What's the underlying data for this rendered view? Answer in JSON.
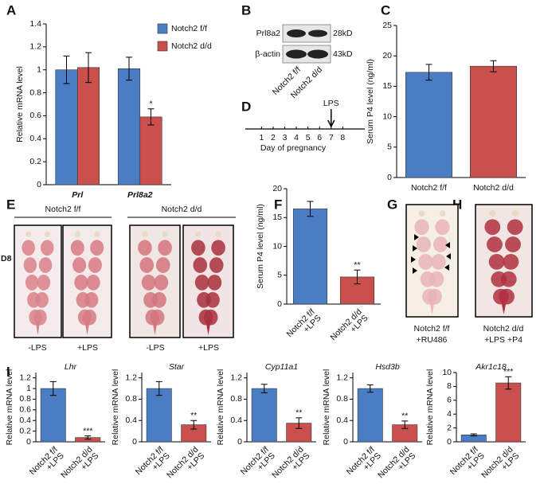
{
  "panel_labels": [
    "A",
    "B",
    "C",
    "D",
    "E",
    "F",
    "G",
    "H",
    "I"
  ],
  "chart_data": [
    {
      "type": "bar",
      "ylabel": "Relative mRNA level",
      "categories": [
        "Prl",
        "Prl8a2"
      ],
      "series": [
        {
          "name": "Notch2 f/f",
          "color": "#4a7dc4",
          "values": [
            1.0,
            1.01
          ],
          "errors": [
            0.12,
            0.1
          ]
        },
        {
          "name": "Notch2 d/d",
          "color": "#c9504c",
          "values": [
            1.02,
            0.59
          ],
          "errors": [
            0.13,
            0.07
          ],
          "significance": [
            null,
            "*"
          ]
        }
      ],
      "ylim": [
        0,
        1.4
      ],
      "yticks": [
        0,
        0.2,
        0.4,
        0.6,
        0.8,
        1,
        1.2,
        1.4
      ],
      "legend": "upper right"
    },
    {
      "type": "bar",
      "ylabel": "Serum P4 level (ng/ml)",
      "categories": [
        "Notch2 f/f",
        "Notch2 d/d"
      ],
      "values": [
        17.3,
        18.3
      ],
      "errors": [
        1.3,
        0.9
      ],
      "colors": [
        "#4a7dc4",
        "#c9504c"
      ],
      "ylim": [
        0,
        25
      ],
      "yticks": [
        0,
        5,
        10,
        15,
        20,
        25
      ]
    },
    {
      "type": "timeline",
      "xlabel": "Day of pregnancy",
      "xlim": [
        -0.4,
        9.9
      ],
      "xticks": [
        1,
        2,
        3,
        4,
        5,
        6,
        7,
        8
      ],
      "annotations": [
        {
          "text": "LPS",
          "x": 7
        }
      ]
    },
    {
      "type": "bar",
      "ylabel": "Serum P4 level (ng/ml)",
      "categories": [
        "Notch2 f/f +LPS",
        "Notch2 d/d +LPS"
      ],
      "values": [
        16.5,
        4.7
      ],
      "errors": [
        1.3,
        1.2
      ],
      "significance": [
        null,
        "**"
      ],
      "colors": [
        "#4a7dc4",
        "#c9504c"
      ],
      "ylim": [
        0,
        20
      ],
      "yticks": [
        0,
        5,
        10,
        15,
        20
      ]
    },
    {
      "type": "bar",
      "title": "Lhr",
      "ylabel": "Relative mRNA level",
      "categories": [
        "Notch2 f/f +LPS",
        "Notch2 d/d +LPS"
      ],
      "values": [
        1.0,
        0.08
      ],
      "errors": [
        0.13,
        0.03
      ],
      "significance": [
        null,
        "***"
      ],
      "colors": [
        "#4a7dc4",
        "#c9504c"
      ],
      "ylim": [
        0,
        1.3
      ],
      "yticks": [
        0,
        0.2,
        0.4,
        0.6,
        0.8,
        1,
        1.2
      ]
    },
    {
      "type": "bar",
      "title": "Star",
      "ylabel": "Relative mRNA level",
      "categories": [
        "Notch2 f/f +LPS",
        "Notch2 d/d +LPS"
      ],
      "values": [
        1.0,
        0.32
      ],
      "errors": [
        0.13,
        0.08
      ],
      "significance": [
        null,
        "**"
      ],
      "colors": [
        "#4a7dc4",
        "#c9504c"
      ],
      "ylim": [
        0,
        1.3
      ],
      "yticks": [
        0,
        0.4,
        0.8,
        1.2
      ]
    },
    {
      "type": "bar",
      "title": "Cyp11a1",
      "ylabel": "Relative mRNA level",
      "categories": [
        "Notch2 f/f +LPS",
        "Notch2 d/d +LPS"
      ],
      "values": [
        1.0,
        0.35
      ],
      "errors": [
        0.08,
        0.1
      ],
      "significance": [
        null,
        "**"
      ],
      "colors": [
        "#4a7dc4",
        "#c9504c"
      ],
      "ylim": [
        0,
        1.3
      ],
      "yticks": [
        0,
        0.4,
        0.8,
        1.2
      ]
    },
    {
      "type": "bar",
      "title": "Hsd3b",
      "ylabel": "Relative mRNA level",
      "categories": [
        "Notch2 f/f +LPS",
        "Notch2 d/d +LPS"
      ],
      "values": [
        1.0,
        0.32
      ],
      "errors": [
        0.07,
        0.07
      ],
      "significance": [
        null,
        "**"
      ],
      "colors": [
        "#4a7dc4",
        "#c9504c"
      ],
      "ylim": [
        0,
        1.3
      ],
      "yticks": [
        0,
        0.4,
        0.8,
        1.2
      ]
    },
    {
      "type": "bar",
      "title": "Akr1c18",
      "ylabel": "Relative mRNA level",
      "categories": [
        "Notch2 f/f +LPS",
        "Notch2 d/d +LPS"
      ],
      "values": [
        1.0,
        8.5
      ],
      "errors": [
        0.15,
        0.9
      ],
      "significance": [
        null,
        "***"
      ],
      "colors": [
        "#4a7dc4",
        "#c9504c"
      ],
      "ylim": [
        0,
        10
      ],
      "yticks": [
        0,
        2,
        4,
        6,
        8,
        10
      ]
    }
  ],
  "blot": {
    "rows": [
      "Prl8a2",
      "β-actin"
    ],
    "sizes": [
      "28kD",
      "43kD"
    ],
    "lanes": [
      "Notch2 f/f",
      "Notch2 d/d"
    ]
  },
  "panel_e": {
    "groups": [
      "Notch2 f/f",
      "Notch2 d/d"
    ],
    "day": "D8",
    "lanes": [
      "-LPS",
      "+LPS",
      "-LPS",
      "+LPS"
    ]
  },
  "panel_g": {
    "lines": [
      "Notch2 f/f",
      "+RU486"
    ]
  },
  "panel_h": {
    "lines": [
      "Notch2 d/d",
      "+LPS +P4"
    ]
  }
}
